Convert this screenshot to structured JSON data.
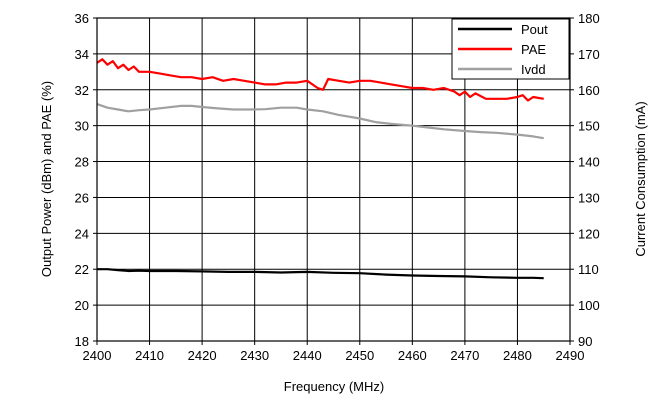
{
  "chart_data": {
    "type": "line",
    "xlabel": "Frequency (MHz)",
    "ylabel_left": "Output Power (dBm) and PAE (%)",
    "ylabel_right": "Current Consumption (mA)",
    "xlim": [
      2400,
      2490
    ],
    "ylim_left": [
      18,
      36
    ],
    "ylim_right": [
      90,
      180
    ],
    "x_ticks": [
      "2400",
      "2410",
      "2420",
      "2430",
      "2440",
      "2450",
      "2460",
      "2470",
      "2480",
      "2490"
    ],
    "y_left_ticks": [
      "18",
      "20",
      "22",
      "24",
      "26",
      "28",
      "30",
      "32",
      "34",
      "36"
    ],
    "y_right_ticks": [
      "90",
      "100",
      "110",
      "120",
      "130",
      "140",
      "150",
      "160",
      "170",
      "180"
    ],
    "grid": true,
    "legend_position": "top-right",
    "series": [
      {
        "name": "Pout",
        "axis": "left",
        "color": "#000000",
        "x": [
          2400,
          2402,
          2404,
          2406,
          2408,
          2410,
          2415,
          2420,
          2425,
          2430,
          2435,
          2440,
          2445,
          2450,
          2455,
          2460,
          2465,
          2470,
          2475,
          2480,
          2483,
          2485
        ],
        "y": [
          22.0,
          22.0,
          21.95,
          21.9,
          21.92,
          21.9,
          21.9,
          21.88,
          21.85,
          21.85,
          21.82,
          21.85,
          21.8,
          21.78,
          21.7,
          21.65,
          21.62,
          21.6,
          21.55,
          21.52,
          21.52,
          21.5
        ]
      },
      {
        "name": "PAE",
        "axis": "left",
        "color": "#ff0000",
        "x": [
          2400,
          2401,
          2402,
          2403,
          2404,
          2405,
          2406,
          2407,
          2408,
          2410,
          2412,
          2414,
          2416,
          2418,
          2420,
          2422,
          2424,
          2426,
          2428,
          2430,
          2432,
          2434,
          2436,
          2438,
          2440,
          2442,
          2443,
          2444,
          2446,
          2448,
          2450,
          2452,
          2454,
          2456,
          2458,
          2460,
          2462,
          2464,
          2466,
          2468,
          2469,
          2470,
          2471,
          2472,
          2474,
          2476,
          2478,
          2480,
          2481,
          2482,
          2483,
          2485
        ],
        "y": [
          33.5,
          33.7,
          33.4,
          33.6,
          33.2,
          33.4,
          33.1,
          33.3,
          33.0,
          33.0,
          32.9,
          32.8,
          32.7,
          32.7,
          32.6,
          32.7,
          32.5,
          32.6,
          32.5,
          32.4,
          32.3,
          32.3,
          32.4,
          32.4,
          32.5,
          32.1,
          32.0,
          32.6,
          32.5,
          32.4,
          32.5,
          32.5,
          32.4,
          32.3,
          32.2,
          32.1,
          32.1,
          32.0,
          32.1,
          31.9,
          31.7,
          31.9,
          31.6,
          31.8,
          31.5,
          31.5,
          31.5,
          31.6,
          31.7,
          31.4,
          31.6,
          31.5
        ]
      },
      {
        "name": "Ivdd",
        "axis": "right",
        "color": "#a0a0a0",
        "x": [
          2400,
          2402,
          2404,
          2406,
          2408,
          2410,
          2413,
          2416,
          2418,
          2420,
          2423,
          2426,
          2429,
          2432,
          2435,
          2438,
          2440,
          2443,
          2446,
          2450,
          2453,
          2456,
          2460,
          2463,
          2466,
          2470,
          2473,
          2476,
          2480,
          2483,
          2485
        ],
        "y": [
          156,
          155,
          154.5,
          154,
          154.3,
          154.5,
          155,
          155.5,
          155.5,
          155.2,
          154.8,
          154.5,
          154.5,
          154.6,
          155,
          155,
          154.5,
          154,
          153,
          152,
          151,
          150.5,
          150,
          149.5,
          149,
          148.5,
          148.2,
          148,
          147.5,
          147,
          146.5
        ]
      }
    ]
  }
}
